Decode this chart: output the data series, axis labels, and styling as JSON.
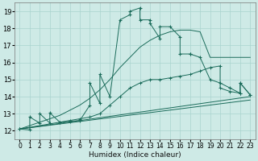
{
  "xlabel": "Humidex (Indice chaleur)",
  "bg_color": "#ceeae6",
  "line_color": "#1a6b5a",
  "grid_color": "#aad4ce",
  "xlim": [
    -0.5,
    23.5
  ],
  "ylim": [
    11.5,
    19.5
  ],
  "xticks": [
    0,
    1,
    2,
    3,
    4,
    5,
    6,
    7,
    8,
    9,
    10,
    11,
    12,
    13,
    14,
    15,
    16,
    17,
    18,
    19,
    20,
    21,
    22,
    23
  ],
  "yticks": [
    12,
    13,
    14,
    15,
    16,
    17,
    18,
    19
  ],
  "series_main": {
    "x": [
      0,
      1,
      1,
      2,
      2,
      3,
      3,
      4,
      5,
      6,
      7,
      7,
      8,
      8,
      9,
      10,
      11,
      11,
      12,
      12,
      13,
      13,
      14,
      14,
      15,
      16,
      16,
      17,
      17,
      18,
      19,
      20,
      21,
      22,
      22,
      23
    ],
    "y": [
      12.1,
      12.05,
      12.8,
      12.45,
      13.0,
      12.45,
      13.05,
      12.5,
      12.55,
      12.6,
      13.5,
      14.8,
      13.6,
      15.3,
      14.0,
      18.5,
      18.8,
      19.0,
      19.2,
      18.5,
      18.5,
      18.3,
      17.4,
      18.1,
      18.1,
      17.5,
      16.5,
      16.5,
      16.5,
      16.3,
      15.0,
      14.8,
      14.5,
      14.2,
      14.8,
      14.1
    ]
  },
  "series_upper": {
    "x": [
      0,
      1,
      2,
      3,
      4,
      5,
      6,
      7,
      8,
      9,
      10,
      11,
      12,
      13,
      14,
      15,
      16,
      17,
      18,
      19,
      20,
      21,
      22,
      23
    ],
    "y": [
      12.1,
      12.3,
      12.5,
      12.7,
      12.9,
      13.2,
      13.5,
      13.9,
      14.4,
      15.0,
      15.7,
      16.3,
      16.9,
      17.3,
      17.6,
      17.8,
      17.9,
      17.9,
      17.8,
      16.3,
      16.3,
      16.3,
      16.3,
      16.3
    ]
  },
  "series_mid": {
    "x": [
      0,
      4,
      5,
      6,
      7,
      8,
      9,
      10,
      11,
      12,
      13,
      14,
      15,
      16,
      17,
      18,
      19,
      20,
      20,
      21,
      22,
      22,
      23
    ],
    "y": [
      12.1,
      12.5,
      12.6,
      12.7,
      12.8,
      13.0,
      13.5,
      14.0,
      14.5,
      14.8,
      15.0,
      15.0,
      15.1,
      15.2,
      15.3,
      15.5,
      15.7,
      15.8,
      14.5,
      14.3,
      14.2,
      14.8,
      14.1
    ]
  },
  "series_low": {
    "x": [
      0,
      23
    ],
    "y": [
      12.1,
      14.0
    ]
  },
  "series_lowest": {
    "x": [
      0,
      23
    ],
    "y": [
      12.1,
      13.8
    ]
  }
}
